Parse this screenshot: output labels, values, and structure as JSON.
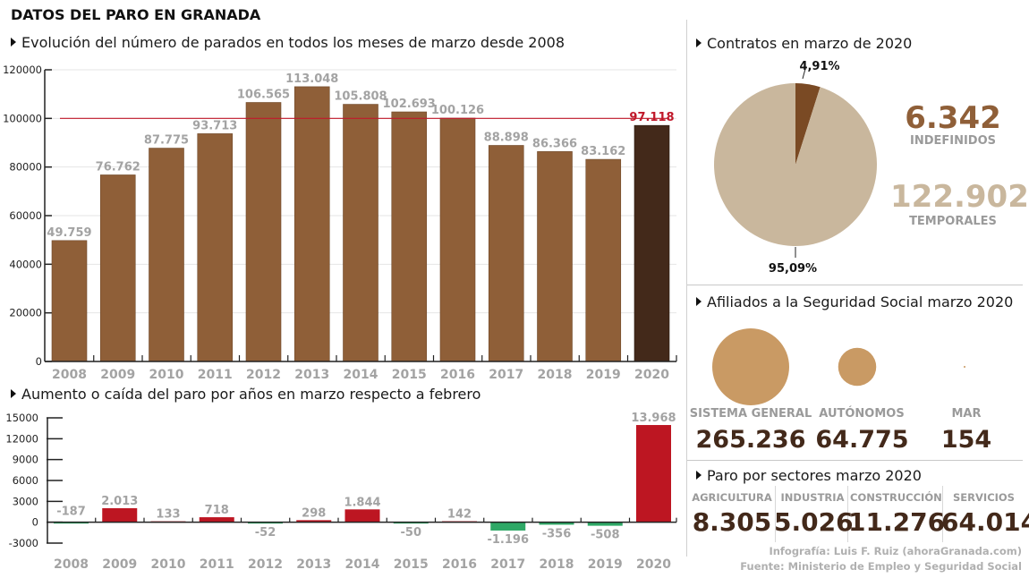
{
  "header": {
    "title": "DATOS DEL PARO EN GRANADA"
  },
  "colors": {
    "bar_brown": "#8f5f38",
    "bar_dark": "#43291a",
    "reference_red": "#c0182a",
    "increase_red": "#bd1622",
    "decrease_green": "#2ea866",
    "label_gray": "#a3a3a3",
    "pie_light": "#c9b79d",
    "pie_dark": "#7a4a24",
    "bubble": "#c99a64",
    "number_dark": "#43291a",
    "temporales": "#c9b79d"
  },
  "chart_data": [
    {
      "type": "bar",
      "title": "Evolución del número de parados en todos los meses de marzo desde 2008",
      "xlabel": "",
      "ylabel": "",
      "ylim": [
        0,
        120000
      ],
      "yticks": [
        0,
        20000,
        40000,
        60000,
        80000,
        100000,
        120000
      ],
      "ytick_labels": [
        "0",
        "20000",
        "40000",
        "60000",
        "80000",
        "100000",
        "120000"
      ],
      "grid": true,
      "categories": [
        "2008",
        "2009",
        "2010",
        "2011",
        "2012",
        "2013",
        "2014",
        "2015",
        "2016",
        "2017",
        "2018",
        "2019",
        "2020"
      ],
      "values": [
        49759,
        76762,
        87775,
        93713,
        106565,
        113048,
        105808,
        102693,
        100126,
        88898,
        86366,
        83162,
        97118
      ],
      "value_labels": [
        "49.759",
        "76.762",
        "87.775",
        "93.713",
        "106.565",
        "113.048",
        "105.808",
        "102.693",
        "100.126",
        "88.898",
        "86.366",
        "83.162",
        "97.118"
      ],
      "highlight_index": 12,
      "reference_line": 100000
    },
    {
      "type": "bar",
      "title": "Aumento o caída del paro por años en marzo respecto a febrero",
      "xlabel": "",
      "ylabel": "",
      "ylim": [
        -3000,
        15000
      ],
      "yticks": [
        -3000,
        0,
        3000,
        6000,
        9000,
        12000,
        15000
      ],
      "ytick_labels": [
        "-3000",
        "0",
        "3000",
        "6000",
        "9000",
        "12000",
        "15000"
      ],
      "grid": false,
      "categories": [
        "2008",
        "2009",
        "2010",
        "2011",
        "2012",
        "2013",
        "2014",
        "2015",
        "2016",
        "2017",
        "2018",
        "2019",
        "2020"
      ],
      "values": [
        -187,
        2013,
        133,
        718,
        -52,
        298,
        1844,
        -50,
        142,
        -1196,
        -356,
        -508,
        13968
      ],
      "value_labels": [
        "-187",
        "2.013",
        "133",
        "718",
        "-52",
        "298",
        "1.844",
        "-50",
        "142",
        "-1.196",
        "-356",
        "-508",
        "13.968"
      ]
    },
    {
      "type": "pie",
      "title": "Contratos en marzo de 2020",
      "slices": [
        {
          "name": "Indefinidos",
          "value": 4.91,
          "label": "4,91%"
        },
        {
          "name": "Temporales",
          "value": 95.09,
          "label": "95,09%"
        }
      ]
    }
  ],
  "contratos": {
    "indefinidos": {
      "value": "6.342",
      "label": "INDEFINIDOS"
    },
    "temporales": {
      "value": "122.902",
      "label": "TEMPORALES"
    }
  },
  "afiliados": {
    "title": "Afiliados a la Seguridad Social marzo 2020",
    "items": [
      {
        "label": "SISTEMA GENERAL",
        "value": "265.236",
        "amount": 265236
      },
      {
        "label": "AUTÓNOMOS",
        "value": "64.775",
        "amount": 64775
      },
      {
        "label": "MAR",
        "value": "154",
        "amount": 154
      }
    ]
  },
  "sectores": {
    "title": "Paro por sectores marzo 2020",
    "items": [
      {
        "label": "AGRICULTURA",
        "value": "8.305"
      },
      {
        "label": "INDUSTRIA",
        "value": "5.026"
      },
      {
        "label": "CONSTRUCCIÓN",
        "value": "11.276"
      },
      {
        "label": "SERVICIOS",
        "value": "64.014"
      }
    ]
  },
  "credits": {
    "infografia": "Infografía: Luis F. Ruiz (ahoraGranada.com)",
    "fuente": "Fuente: Ministerio de Empleo y Seguridad Social"
  }
}
